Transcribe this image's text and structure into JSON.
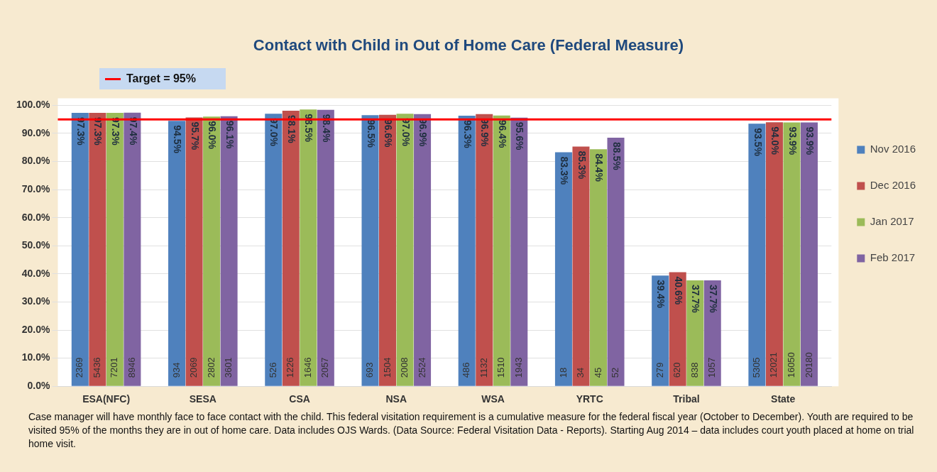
{
  "chart_data": {
    "type": "bar",
    "title": "Contact with Child in Out of Home Care (Federal Measure)",
    "categories": [
      "ESA(NFC)",
      "SESA",
      "CSA",
      "NSA",
      "WSA",
      "YRTC",
      "Tribal",
      "State"
    ],
    "series": [
      {
        "name": "Nov 2016",
        "color": "#4f81bd",
        "values": [
          97.3,
          94.5,
          97.0,
          96.5,
          96.3,
          83.3,
          39.4,
          93.5
        ],
        "value_labels": [
          "97.3%",
          "94.5%",
          "97.0%",
          "96.5%",
          "96.3%",
          "83.3%",
          "39.4%",
          "93.5%"
        ]
      },
      {
        "name": "Dec 2016",
        "color": "#c0504d",
        "values": [
          97.3,
          95.7,
          98.1,
          96.6,
          96.9,
          85.3,
          40.6,
          94.0
        ],
        "value_labels": [
          "97.3%",
          "95.7%",
          "98.1%",
          "96.6%",
          "96.9%",
          "85.3%",
          "40.6%",
          "94.0%"
        ]
      },
      {
        "name": "Jan 2017",
        "color": "#9bbb59",
        "values": [
          97.3,
          96.0,
          98.5,
          97.0,
          96.4,
          84.4,
          37.7,
          93.9
        ],
        "value_labels": [
          "97.3%",
          "96.0%",
          "98.5%",
          "97.0%",
          "96.4%",
          "84.4%",
          "37.7%",
          "93.9%"
        ]
      },
      {
        "name": "Feb 2017",
        "color": "#8064a2",
        "values": [
          97.4,
          96.1,
          98.4,
          96.9,
          95.6,
          88.5,
          37.7,
          93.9
        ],
        "value_labels": [
          "97.4%",
          "96.1%",
          "98.4%",
          "96.9%",
          "95.6%",
          "88.5%",
          "37.7%",
          "93.9%"
        ]
      }
    ],
    "ylim": [
      0,
      100
    ],
    "yticks": [
      {
        "value": 0,
        "label": "0.0%"
      },
      {
        "value": 10,
        "label": "10.0%"
      },
      {
        "value": 20,
        "label": "20.0%"
      },
      {
        "value": 30,
        "label": "30.0%"
      },
      {
        "value": 40,
        "label": "40.0%"
      },
      {
        "value": 50,
        "label": "50.0%"
      },
      {
        "value": 60,
        "label": "60.0%"
      },
      {
        "value": 70,
        "label": "70.0%"
      },
      {
        "value": 80,
        "label": "80.0%"
      },
      {
        "value": 90,
        "label": "90.0%"
      },
      {
        "value": 100,
        "label": "100.0%"
      }
    ],
    "grid": "y",
    "legend": "right",
    "ref_lines": [
      {
        "axis": "y",
        "value": 95,
        "label": "Target = 95%",
        "color": "#ff0000"
      }
    ],
    "annotations": [
      {
        "text": "2369",
        "x": "ESA(NFC)",
        "y": 3
      },
      {
        "text": "5436",
        "x": "ESA(NFC)",
        "y": 3
      },
      {
        "text": "7201",
        "x": "ESA(NFC)",
        "y": 3
      },
      {
        "text": "8946",
        "x": "ESA(NFC)",
        "y": 3
      },
      {
        "text": "934",
        "x": "SESA",
        "y": 3
      },
      {
        "text": "2069",
        "x": "SESA",
        "y": 3
      },
      {
        "text": "2802",
        "x": "SESA",
        "y": 3
      },
      {
        "text": "3601",
        "x": "SESA",
        "y": 3
      },
      {
        "text": "526",
        "x": "CSA",
        "y": 3
      },
      {
        "text": "1226",
        "x": "CSA",
        "y": 3
      },
      {
        "text": "1646",
        "x": "CSA",
        "y": 3
      },
      {
        "text": "2057",
        "x": "CSA",
        "y": 3
      },
      {
        "text": "693",
        "x": "NSA",
        "y": 3
      },
      {
        "text": "1504",
        "x": "NSA",
        "y": 3
      },
      {
        "text": "2008",
        "x": "NSA",
        "y": 3
      },
      {
        "text": "2524",
        "x": "NSA",
        "y": 3
      },
      {
        "text": "486",
        "x": "WSA",
        "y": 3
      },
      {
        "text": "1132",
        "x": "WSA",
        "y": 3
      },
      {
        "text": "1510",
        "x": "WSA",
        "y": 3
      },
      {
        "text": "1943",
        "x": "WSA",
        "y": 3
      },
      {
        "text": "18",
        "x": "YRTC",
        "y": 3
      },
      {
        "text": "34",
        "x": "YRTC",
        "y": 3
      },
      {
        "text": "45",
        "x": "YRTC",
        "y": 3
      },
      {
        "text": "52",
        "x": "YRTC",
        "y": 3
      },
      {
        "text": "279",
        "x": "Tribal",
        "y": 3
      },
      {
        "text": "620",
        "x": "Tribal",
        "y": 3
      },
      {
        "text": "838",
        "x": "Tribal",
        "y": 3
      },
      {
        "text": "1057",
        "x": "Tribal",
        "y": 3
      },
      {
        "text": "5305",
        "x": "State",
        "y": 3
      },
      {
        "text": "12021",
        "x": "State",
        "y": 3
      },
      {
        "text": "16050",
        "x": "State",
        "y": 3
      },
      {
        "text": "20180",
        "x": "State",
        "y": 3
      },
      "Case manager will have monthly face to face contact with the child. This federal visitation requirement is a cumulative measure for the federal fiscal year (October to December). Youth are required to be visited 95% of the months they are in out of home care.  Data includes OJS Wards. (Data Source:  Federal Visitation Data - Reports). Starting Aug 2014 – data includes court youth placed at home on trial home visit."
    ]
  }
}
